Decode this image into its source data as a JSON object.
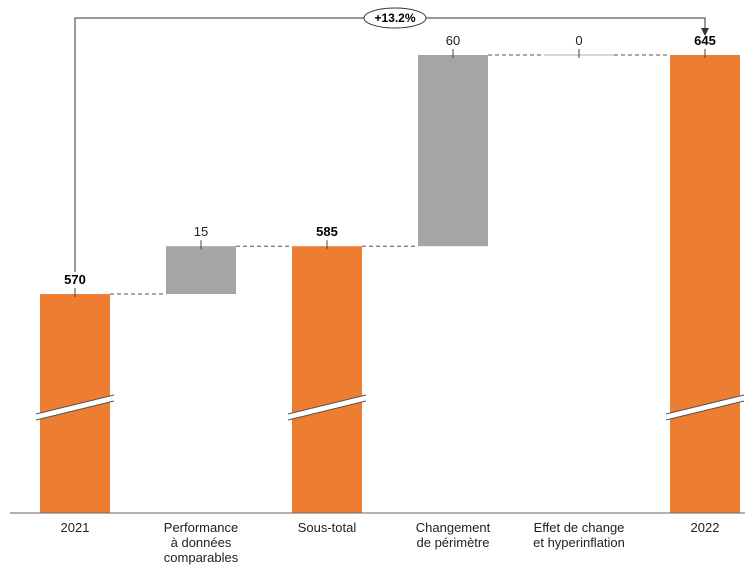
{
  "chart_data": {
    "type": "bar",
    "subtype": "waterfall",
    "title": "",
    "xlabel": "",
    "ylabel": "",
    "categories": [
      [
        "2021"
      ],
      [
        "Performance",
        "à données",
        "comparables"
      ],
      [
        "Sous-total"
      ],
      [
        "Changement",
        "de périmètre"
      ],
      [
        "Effet de change",
        "et hyperinflation"
      ],
      [
        "2022"
      ]
    ],
    "bars": [
      {
        "label": "570",
        "value": 570,
        "kind": "total",
        "bold": true
      },
      {
        "label": "15",
        "value": 15,
        "kind": "delta",
        "bold": false
      },
      {
        "label": "585",
        "value": 585,
        "kind": "total",
        "bold": true
      },
      {
        "label": "60",
        "value": 60,
        "kind": "delta",
        "bold": false
      },
      {
        "label": "0",
        "value": 0,
        "kind": "delta",
        "bold": false
      },
      {
        "label": "645",
        "value": 645,
        "kind": "total",
        "bold": true
      }
    ],
    "growth_annotation": {
      "text": "+13.2%",
      "from_category": 0,
      "to_category": 5
    },
    "axis_break": true,
    "y_axis_visible": false,
    "grid": false,
    "legend": "none",
    "colors": {
      "total": "#ED7D31",
      "delta": "#A5A5A5",
      "connector": "#555555",
      "text": "#222222"
    }
  }
}
